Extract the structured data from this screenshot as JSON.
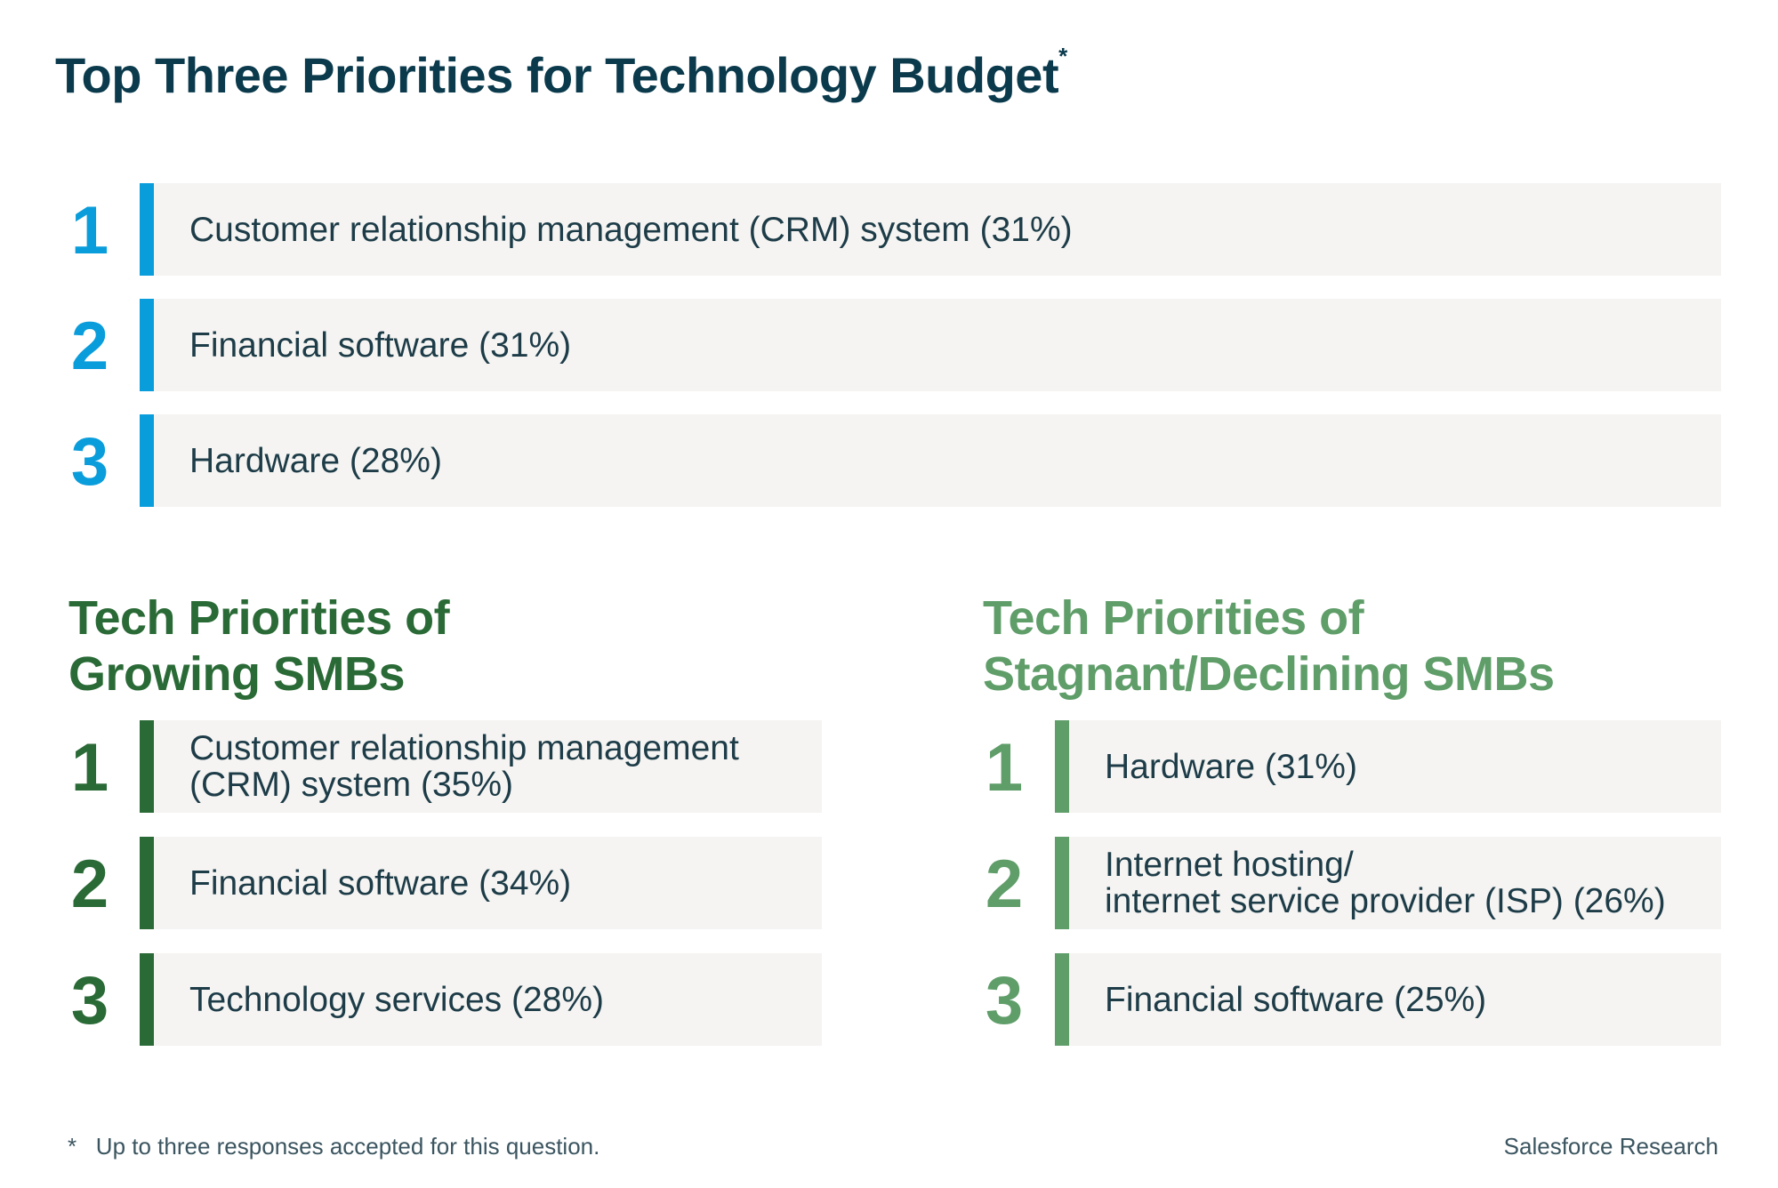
{
  "title": "Top Three Priorities for Technology Budget",
  "title_mark": "*",
  "overall": [
    {
      "rank": "1",
      "label": "Customer relationship management (CRM) system (31%)"
    },
    {
      "rank": "2",
      "label": "Financial software (31%)"
    },
    {
      "rank": "3",
      "label": "Hardware (28%)"
    }
  ],
  "growing": {
    "heading_line1": "Tech Priorities of",
    "heading_line2": "Growing SMBs",
    "items": [
      {
        "rank": "1",
        "label_line1": "Customer relationship management",
        "label_line2": "(CRM) system (35%)"
      },
      {
        "rank": "2",
        "label_line1": "Financial software (34%)",
        "label_line2": ""
      },
      {
        "rank": "3",
        "label_line1": "Technology services (28%)",
        "label_line2": ""
      }
    ]
  },
  "declining": {
    "heading_line1": "Tech Priorities of",
    "heading_line2": "Stagnant/Declining SMBs",
    "items": [
      {
        "rank": "1",
        "label_line1": "Hardware (31%)",
        "label_line2": ""
      },
      {
        "rank": "2",
        "label_line1": "Internet hosting/",
        "label_line2": "internet service provider (ISP) (26%)"
      },
      {
        "rank": "3",
        "label_line1": "Financial software (25%)",
        "label_line2": ""
      }
    ]
  },
  "footnote_mark": "*",
  "footnote": "Up to three responses accepted for this question.",
  "source": "Salesforce Research",
  "colors": {
    "blue": "#0a9ddb",
    "dark_green": "#2a6a36",
    "light_green": "#5f9d69",
    "row_bg": "#f5f4f2"
  }
}
